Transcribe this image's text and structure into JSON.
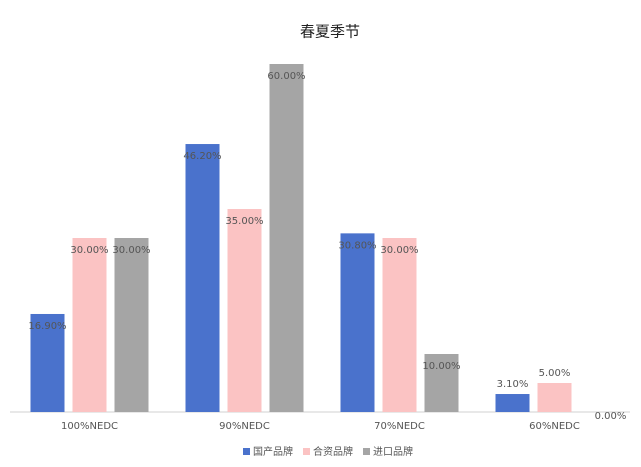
{
  "chart_data": {
    "type": "bar",
    "title": "春夏季节",
    "categories": [
      "100%NEDC",
      "90%NEDC",
      "70%NEDC",
      "60%NEDC"
    ],
    "series": [
      {
        "name": "国产品牌",
        "color": "#4a72cc",
        "values": [
          16.9,
          46.2,
          30.8,
          3.1
        ],
        "value_labels": [
          "16.90%",
          "46.20%",
          "30.80%",
          "3.10%"
        ]
      },
      {
        "name": "合资品牌",
        "color": "#fbc3c3",
        "values": [
          30,
          35,
          30,
          5
        ],
        "value_labels": [
          "30.00%",
          "35.00%",
          "30.00%",
          "5.00%"
        ]
      },
      {
        "name": "进口品牌",
        "color": "#a5a5a5",
        "values": [
          30,
          60,
          10,
          0
        ],
        "value_labels": [
          "30.00%",
          "60.00%",
          "10.00%",
          "0.00%"
        ]
      }
    ],
    "legend": "bottom"
  }
}
